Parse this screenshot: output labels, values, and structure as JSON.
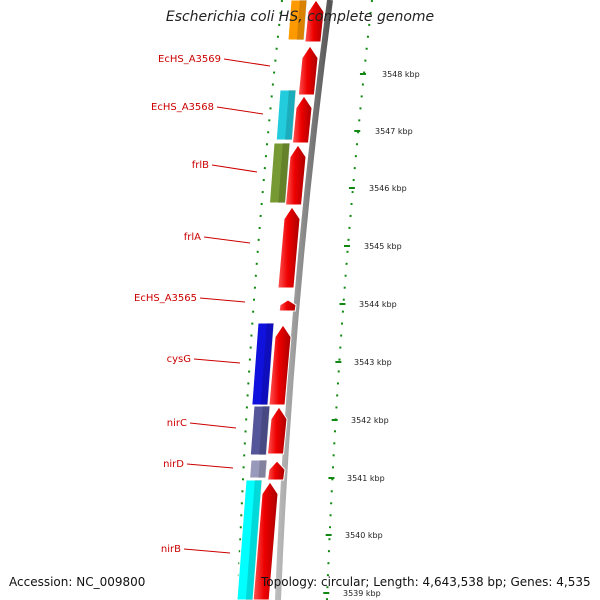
{
  "title": "Escherichia coli HS, complete genome",
  "accession": "Accession: NC_009800",
  "topology": "Topology: circular; Length: 4,643,538 bp; Genes: 4,535",
  "colors": {
    "forward_cds": "#ee0000",
    "backbone": "#8a8a8a",
    "tick": "#118811",
    "label": "#cc0000"
  },
  "gene_labels": [
    {
      "name": "EcHS_A3569"
    },
    {
      "name": "EcHS_A3568"
    },
    {
      "name": "frlB"
    },
    {
      "name": "frlA"
    },
    {
      "name": "EcHS_A3565"
    },
    {
      "name": "cysG"
    },
    {
      "name": "nirC"
    },
    {
      "name": "nirD"
    },
    {
      "name": "nirB"
    }
  ],
  "kbp_labels": [
    "3548 kbp",
    "3547 kbp",
    "3546 kbp",
    "3545 kbp",
    "3544 kbp",
    "3543 kbp",
    "3542 kbp",
    "3541 kbp",
    "3540 kbp",
    "3539 kbp"
  ],
  "reverse_genes": [
    {
      "color": "#ff9900"
    },
    {
      "color": "#22ccdd"
    },
    {
      "color": "#779933"
    },
    {
      "color": "#1111dd"
    },
    {
      "color": "#555599"
    },
    {
      "color": "#9999bb"
    },
    {
      "color": "#00ffff"
    }
  ]
}
